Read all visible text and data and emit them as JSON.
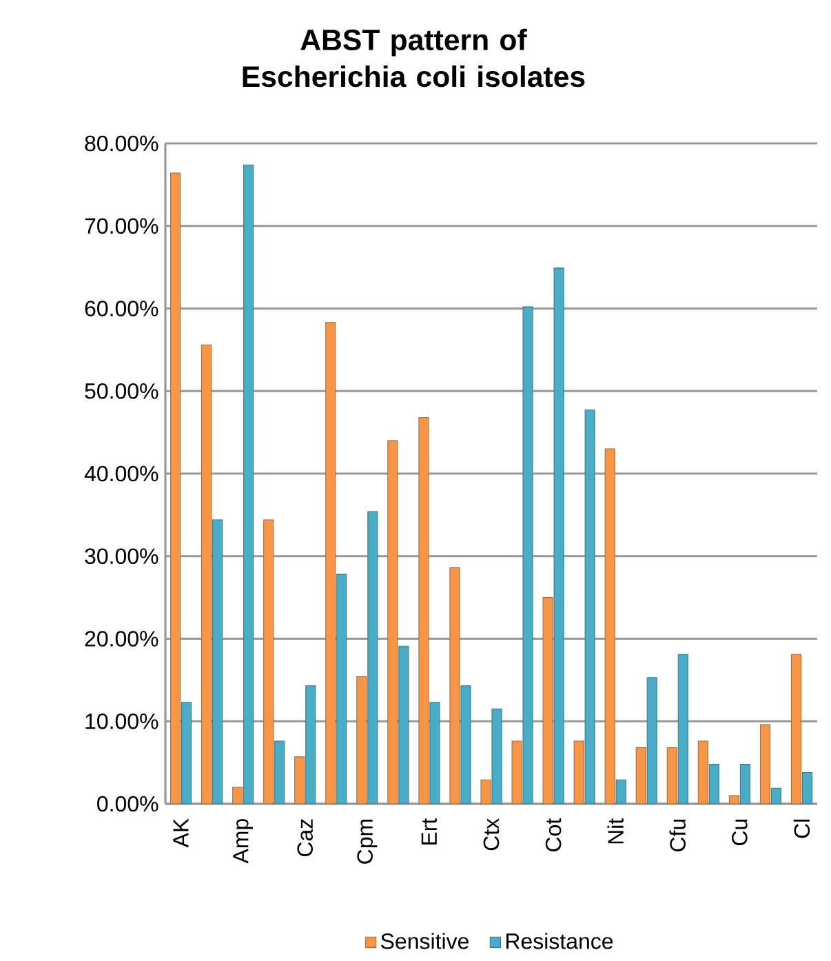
{
  "chart_data": {
    "type": "bar",
    "title": "ABST pattern of Escherichia coli isolates",
    "categories": [
      "AK",
      null,
      "Amp",
      null,
      "Caz",
      null,
      "Cpm",
      null,
      "Ert",
      null,
      "Ctx",
      null,
      "Cot",
      null,
      "Nit",
      null,
      "Cfu",
      null,
      "Cu",
      null,
      "Cl"
    ],
    "series": [
      {
        "name": "Sensitive",
        "color": "#f79646",
        "values": [
          76.4,
          55.6,
          2.0,
          34.4,
          5.7,
          58.3,
          15.4,
          44.0,
          46.8,
          28.6,
          2.9,
          7.6,
          25.0,
          7.6,
          43.0,
          6.8,
          6.8,
          7.6,
          1.0,
          9.6,
          18.1
        ]
      },
      {
        "name": "Resistance",
        "color": "#4bacc6",
        "values": [
          12.3,
          34.4,
          77.4,
          7.6,
          14.3,
          27.8,
          35.4,
          19.1,
          12.3,
          14.3,
          11.5,
          60.2,
          64.9,
          47.7,
          2.9,
          15.3,
          18.1,
          4.8,
          4.8,
          1.9,
          3.8
        ]
      }
    ],
    "ylim": [
      0,
      80
    ],
    "yticks": [
      {
        "value": 0,
        "label": "0.00%"
      },
      {
        "value": 10,
        "label": "10.00%"
      },
      {
        "value": 20,
        "label": "20.00%"
      },
      {
        "value": 30,
        "label": "30.00%"
      },
      {
        "value": 40,
        "label": "40.00%"
      },
      {
        "value": 50,
        "label": "50.00%"
      },
      {
        "value": 60,
        "label": "60.00%"
      },
      {
        "value": 70,
        "label": "70.00%"
      },
      {
        "value": 80,
        "label": "80.00%"
      }
    ],
    "grid": "y",
    "legend": "bottom"
  }
}
